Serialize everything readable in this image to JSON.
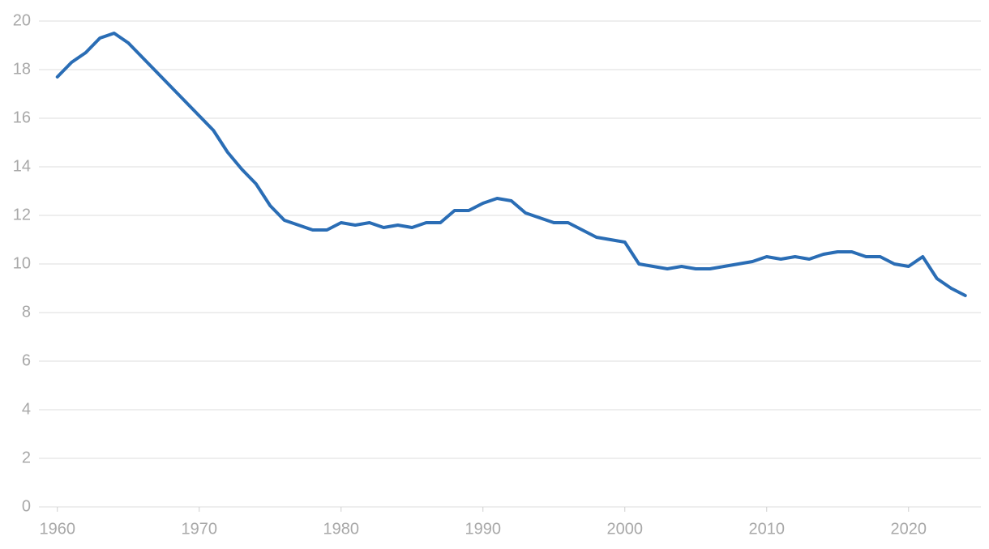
{
  "chart_data": {
    "type": "line",
    "x": [
      1960,
      1961,
      1962,
      1963,
      1964,
      1965,
      1966,
      1967,
      1968,
      1969,
      1970,
      1971,
      1972,
      1973,
      1974,
      1975,
      1976,
      1977,
      1978,
      1979,
      1980,
      1981,
      1982,
      1983,
      1984,
      1985,
      1986,
      1987,
      1988,
      1989,
      1990,
      1991,
      1992,
      1993,
      1994,
      1995,
      1996,
      1997,
      1998,
      1999,
      2000,
      2001,
      2002,
      2003,
      2004,
      2005,
      2006,
      2007,
      2008,
      2009,
      2010,
      2011,
      2012,
      2013,
      2014,
      2015,
      2016,
      2017,
      2018,
      2019,
      2020,
      2021,
      2022,
      2023,
      2024
    ],
    "values": [
      17.7,
      18.3,
      18.7,
      19.3,
      19.5,
      19.1,
      18.5,
      17.9,
      17.3,
      16.7,
      16.1,
      15.5,
      14.6,
      13.9,
      13.3,
      12.4,
      11.8,
      11.6,
      11.4,
      11.4,
      11.7,
      11.6,
      11.7,
      11.5,
      11.6,
      11.5,
      11.7,
      11.7,
      12.2,
      12.2,
      12.5,
      12.7,
      12.6,
      12.1,
      11.9,
      11.7,
      11.7,
      11.4,
      11.1,
      11.0,
      10.9,
      10.0,
      9.9,
      9.8,
      9.9,
      9.8,
      9.8,
      9.9,
      10.0,
      10.1,
      10.3,
      10.2,
      10.3,
      10.2,
      10.4,
      10.5,
      10.5,
      10.3,
      10.3,
      10.0,
      9.9,
      10.3,
      9.4,
      9.0,
      8.7
    ],
    "color": "#2a6db5",
    "xlim": [
      1958.7,
      2025.1
    ],
    "xticks": [
      1960,
      1970,
      1980,
      1990,
      2000,
      2010,
      2020
    ],
    "ylim": [
      0,
      20
    ],
    "yticks": [
      0,
      2,
      4,
      6,
      8,
      10,
      12,
      14,
      16,
      18,
      20
    ],
    "grid": true
  }
}
